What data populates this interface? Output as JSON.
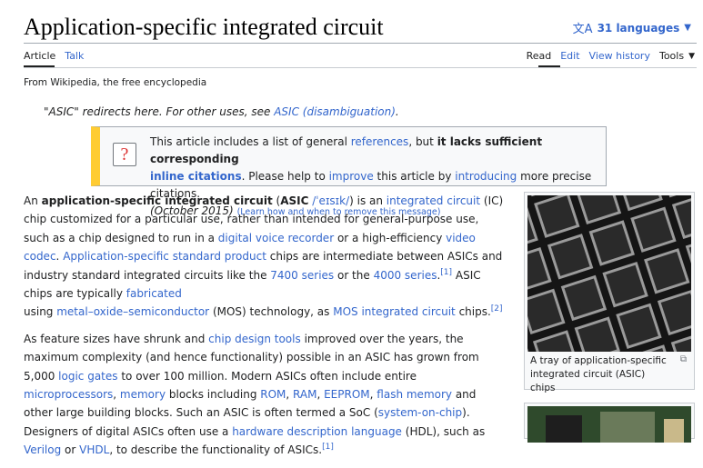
{
  "header": {
    "title": "Application-specific integrated circuit",
    "languages_label": "31 languages"
  },
  "tabs": {
    "left": [
      "Article",
      "Talk"
    ],
    "right": [
      "Read",
      "Edit",
      "View history"
    ],
    "tools_label": "Tools"
  },
  "tagline": "From Wikipedia, the free encyclopedia",
  "hatnote": {
    "prefix": "\"ASIC\" redirects here. For other uses, see ",
    "link": "ASIC (disambiguation)",
    "suffix": "."
  },
  "ambox": {
    "t1": "This article includes a list of general ",
    "l1": "references",
    "t2": ", but ",
    "b1": "it lacks sufficient corresponding",
    "l2": "inline citations",
    "t3": ". Please help to ",
    "l3": "improve",
    "t4": " this article by ",
    "l4": "introducing",
    "t5": " more precise citations.",
    "date": "(October 2015)",
    "small_link": "(Learn how and when to remove this message)"
  },
  "paragraph1": {
    "s1": "An ",
    "b1": "application-specific integrated circuit",
    "s2": " (",
    "b2": "ASIC",
    "ipa": "/ˈeɪsɪk/",
    "s3": ") is an ",
    "l1": "integrated circuit",
    "s4": " (IC) chip customized for a particular use, rather than intended for general-purpose use, such as a chip designed to run in a ",
    "l2": "digital voice recorder",
    "s5": " or a high-efficiency ",
    "l3": "video codec",
    "s6": ". ",
    "l4": "Application-specific standard product",
    "s7": " chips are intermediate between ASICs and industry standard integrated circuits like the ",
    "l5": "7400 series",
    "s8": " or the ",
    "l6": "4000 series",
    "s9": ".",
    "ref1": "[1]",
    "s10": " ASIC chips are typically ",
    "l7": "fabricated",
    "s11": " using ",
    "l8": "metal–oxide–semiconductor",
    "s12": " (MOS) technology, as ",
    "l9": "MOS integrated circuit",
    "s13": " chips.",
    "ref2": "[2]"
  },
  "paragraph2": {
    "s1": "As feature sizes have shrunk and ",
    "l1": "chip design tools",
    "s2": " improved over the years, the maximum complexity (and hence functionality) possible in an ASIC has grown from 5,000 ",
    "l2": "logic gates",
    "s3": " to over 100 million. Modern ASICs often include entire ",
    "l3": "microprocessors",
    "s4": ", ",
    "l4": "memory",
    "s5": " blocks including ",
    "l5": "ROM",
    "s6": ", ",
    "l6": "RAM",
    "s7": ", ",
    "l7": "EEPROM",
    "s8": ", ",
    "l8": "flash memory",
    "s9": " and other large building blocks. Such an ASIC is often termed a SoC (",
    "l9": "system-on-chip",
    "s10": "). Designers of digital ASICs often use a ",
    "l10": "hardware description language",
    "s11": " (HDL), such as ",
    "l11": "Verilog",
    "s12": " or ",
    "l12": "VHDL",
    "s13": ", to describe the functionality of ASICs.",
    "ref1": "[1]"
  },
  "figure1": {
    "caption": "A tray of application-specific integrated circuit (ASIC) chips"
  },
  "icons": [
    "translate-icon",
    "chevron-down-icon",
    "question-mark-icon",
    "enlarge-icon"
  ],
  "colors": {
    "link": "#3366cc",
    "ambox_stripe": "#ffcc33",
    "text": "#202122"
  }
}
